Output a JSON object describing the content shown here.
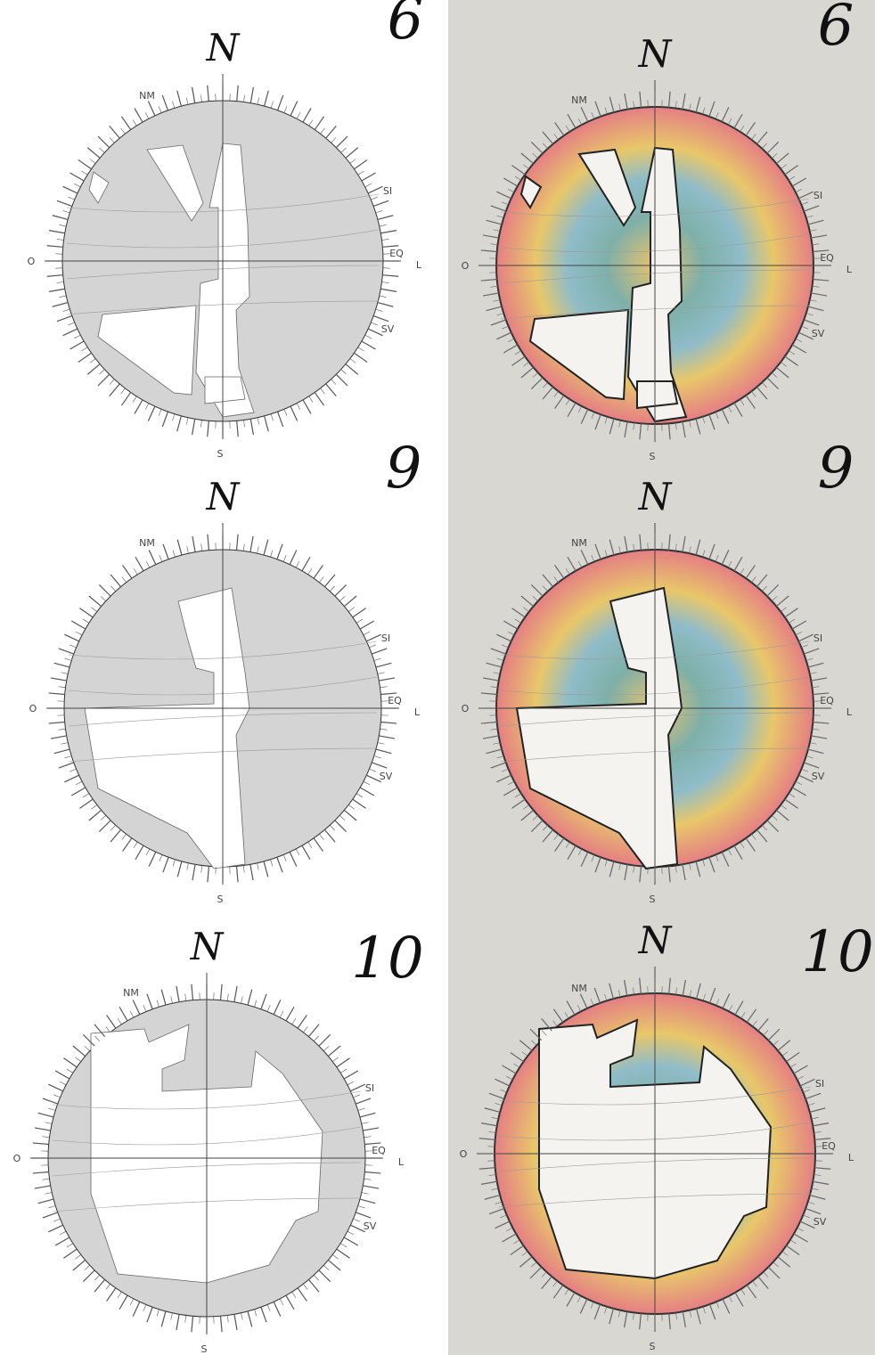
{
  "panels": [
    {
      "north": "N",
      "hour": "6",
      "nm": "NM",
      "si": "SI",
      "eq": "EQ",
      "sv": "SV",
      "west": "O",
      "east": "L",
      "south": "S"
    },
    {
      "north": "N",
      "hour": "9",
      "nm": "NM",
      "si": "SI",
      "eq": "EQ",
      "sv": "SV",
      "west": "O",
      "east": "L",
      "south": "S"
    },
    {
      "north": "N",
      "hour": "10",
      "nm": "NM",
      "si": "SI",
      "eq": "EQ",
      "sv": "SV",
      "west": "O",
      "east": "L",
      "south": "S"
    },
    {
      "north": "N",
      "hour": "6",
      "nm": "NM",
      "si": "SI",
      "eq": "EQ",
      "sv": "SV",
      "west": "O",
      "east": "L",
      "south": "S"
    },
    {
      "north": "N",
      "hour": "9",
      "nm": "NM",
      "si": "SI",
      "eq": "EQ",
      "sv": "SV",
      "west": "O",
      "east": "L",
      "south": "S"
    },
    {
      "north": "N",
      "hour": "10",
      "nm": "NM",
      "si": "SI",
      "eq": "EQ",
      "sv": "SV",
      "west": "O",
      "east": "L",
      "south": "S"
    }
  ]
}
